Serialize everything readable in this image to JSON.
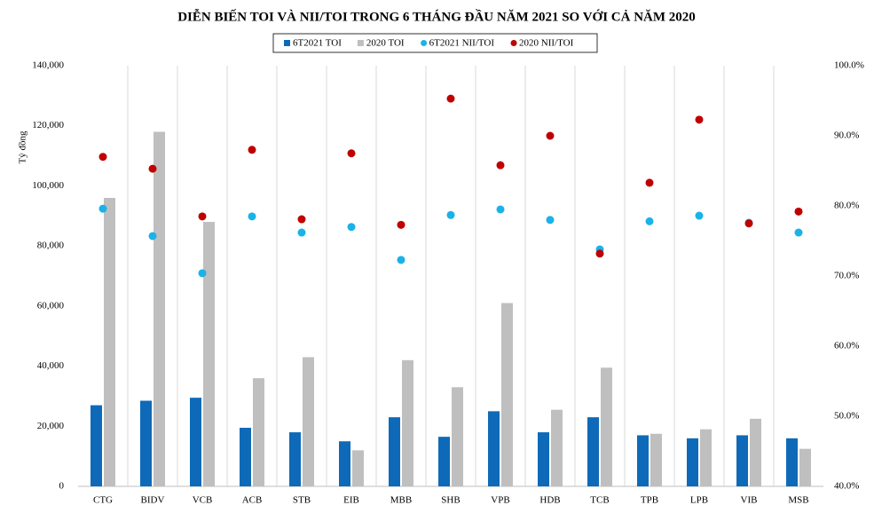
{
  "chart_data": {
    "type": "bar",
    "title": "DIỄN BIẾN TOI VÀ NII/TOI TRONG 6 THÁNG ĐẦU NĂM 2021 SO VỚI CẢ NĂM 2020",
    "y_label": "Tỷ đồng",
    "categories": [
      "CTG",
      "BIDV",
      "VCB",
      "ACB",
      "STB",
      "EIB",
      "MBB",
      "SHB",
      "VPB",
      "HDB",
      "TCB",
      "TPB",
      "LPB",
      "VIB",
      "MSB"
    ],
    "series": [
      {
        "name": "6T2021 TOI",
        "type": "bar",
        "color": "#0e6ab8",
        "values": [
          27000,
          28500,
          29500,
          19500,
          18000,
          15000,
          23000,
          16500,
          25000,
          18000,
          23000,
          17000,
          16000,
          17000,
          16000
        ]
      },
      {
        "name": "2020 TOI",
        "type": "bar",
        "color": "#bfbfbf",
        "values": [
          96000,
          118000,
          88000,
          36000,
          43000,
          12000,
          42000,
          33000,
          61000,
          25500,
          39500,
          17500,
          19000,
          22500,
          12500
        ]
      },
      {
        "name": "6T2021 NII/TOI",
        "type": "scatter",
        "axis": "y2",
        "color": "#1ab2e8",
        "values": [
          79.6,
          75.7,
          70.4,
          78.5,
          76.2,
          77.0,
          72.3,
          78.7,
          79.5,
          78.0,
          73.8,
          77.8,
          78.6,
          77.6,
          76.2
        ]
      },
      {
        "name": "2020 NII/TOI",
        "type": "scatter",
        "axis": "y2",
        "color": "#c00000",
        "values": [
          87.0,
          85.3,
          78.5,
          88.0,
          78.1,
          87.5,
          77.3,
          95.3,
          85.8,
          90.0,
          73.2,
          83.3,
          92.3,
          77.5,
          79.2
        ]
      }
    ],
    "ylim": [
      0,
      140000
    ],
    "yticks": [
      {
        "value": 0,
        "label": "0"
      },
      {
        "value": 20000,
        "label": "20,000"
      },
      {
        "value": 40000,
        "label": "40,000"
      },
      {
        "value": 60000,
        "label": "60,000"
      },
      {
        "value": 80000,
        "label": "80,000"
      },
      {
        "value": 100000,
        "label": "100,000"
      },
      {
        "value": 120000,
        "label": "120,000"
      },
      {
        "value": 140000,
        "label": "140,000"
      }
    ],
    "y2lim": [
      40,
      100
    ],
    "y2ticks": [
      {
        "value": 40,
        "label": "40.0%"
      },
      {
        "value": 50,
        "label": "50.0%"
      },
      {
        "value": 60,
        "label": "60.0%"
      },
      {
        "value": 70,
        "label": "70.0%"
      },
      {
        "value": 80,
        "label": "80.0%"
      },
      {
        "value": 90,
        "label": "90.0%"
      },
      {
        "value": 100,
        "label": "100.0%"
      }
    ],
    "grid": true,
    "legend": "top"
  }
}
